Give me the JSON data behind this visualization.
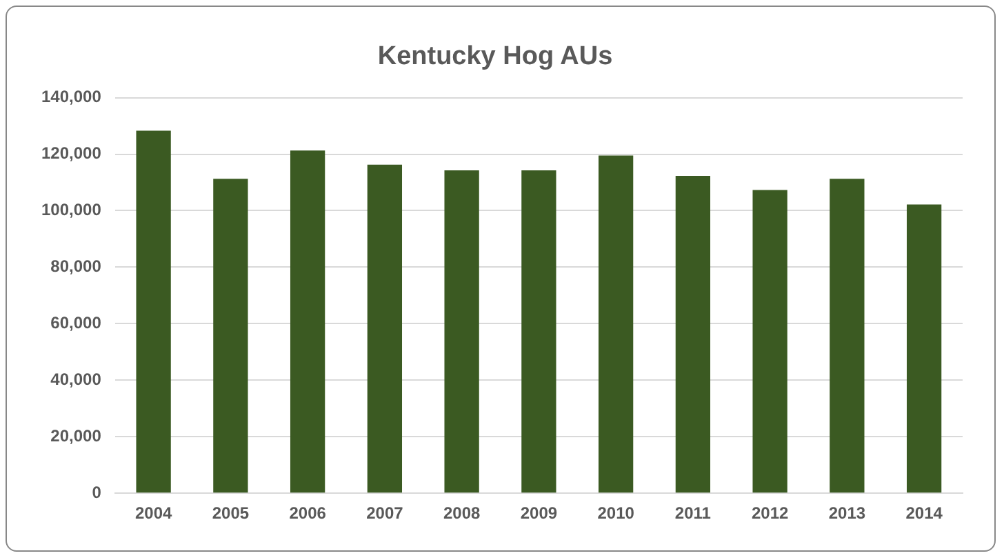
{
  "chart_data": {
    "type": "bar",
    "title": "Kentucky Hog AUs",
    "categories": [
      "2004",
      "2005",
      "2006",
      "2007",
      "2008",
      "2009",
      "2010",
      "2011",
      "2012",
      "2013",
      "2014"
    ],
    "values": [
      128300,
      111300,
      121300,
      116300,
      114300,
      114300,
      119500,
      112300,
      107300,
      111300,
      102200
    ],
    "color": "#3b5a22",
    "ylim": [
      0,
      140000
    ],
    "yticks": [
      {
        "value": 0,
        "label": "0"
      },
      {
        "value": 20000,
        "label": "20,000"
      },
      {
        "value": 40000,
        "label": "40,000"
      },
      {
        "value": 60000,
        "label": "60,000"
      },
      {
        "value": 80000,
        "label": "80,000"
      },
      {
        "value": 100000,
        "label": "100,000"
      },
      {
        "value": 120000,
        "label": "120,000"
      },
      {
        "value": 140000,
        "label": "140,000"
      }
    ],
    "grid": "y"
  }
}
